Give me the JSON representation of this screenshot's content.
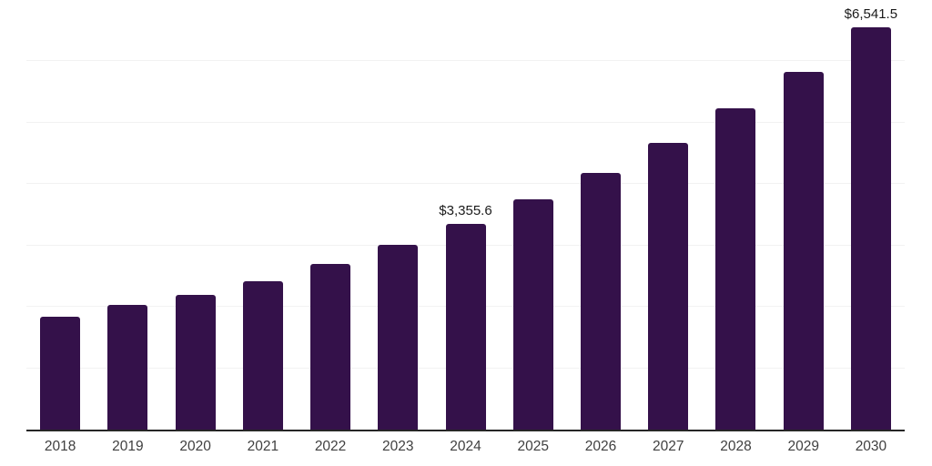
{
  "chart_data": {
    "type": "bar",
    "title": "",
    "xlabel": "",
    "ylabel": "",
    "categories": [
      "2018",
      "2019",
      "2020",
      "2021",
      "2022",
      "2023",
      "2024",
      "2025",
      "2026",
      "2027",
      "2028",
      "2029",
      "2030"
    ],
    "values": [
      1830,
      2030,
      2195,
      2420,
      2695,
      3005,
      3355.6,
      3745,
      4175,
      4665,
      5230,
      5820,
      6541.5
    ],
    "value_labels": {
      "2024": "$3,355.6",
      "2030": "$6,541.5"
    },
    "ylim": [
      0,
      6993
    ],
    "gridline_step": 1000,
    "grid": "horizontal-only",
    "y_tick_labels_visible": false,
    "legend": "none",
    "colors": {
      "bar": "#34114a",
      "background": "#ffffff",
      "gridline": "#f2f2f2",
      "axis_line": "#262626",
      "tick_label": "#404040",
      "value_label": "#1a1a1a"
    }
  }
}
